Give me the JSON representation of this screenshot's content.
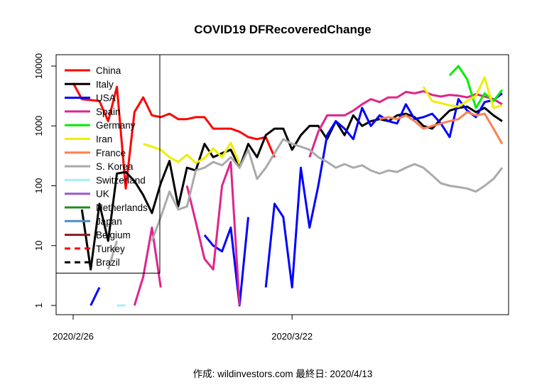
{
  "chart_data": {
    "type": "line",
    "title": "COVID19 DFRecoveredChange",
    "caption": "作成: wildinvestors.com 最終日: 2020/4/13",
    "y_scale": "log",
    "ylim": [
      1,
      10000
    ],
    "y_ticks": [
      1,
      10,
      100,
      1000,
      10000
    ],
    "y_tick_labels": [
      "1",
      "10",
      "100",
      "1000",
      "10000"
    ],
    "x_range": [
      0,
      49
    ],
    "x_ticks": [
      {
        "day": 0,
        "label": "2020/2/26"
      },
      {
        "day": 25,
        "label": "2020/3/22"
      }
    ],
    "legend_position": "top-left",
    "series": [
      {
        "name": "China",
        "color": "#ff0000",
        "width": 3,
        "dash": "",
        "values": [
          5200,
          2800,
          2700,
          2600,
          1200,
          4500,
          90,
          1700,
          3000,
          1500,
          1400,
          1600,
          1300,
          1300,
          1400,
          1400,
          900,
          900,
          900,
          800,
          650,
          600,
          650,
          300,
          null,
          null,
          null,
          null,
          null,
          null,
          null,
          null,
          null,
          null,
          null,
          null,
          null,
          null,
          null,
          null,
          null,
          null,
          null,
          null,
          null,
          null,
          null,
          null,
          null,
          null
        ]
      },
      {
        "name": "Italy",
        "color": "#000000",
        "width": 3,
        "dash": "",
        "values": [
          null,
          40,
          4,
          50,
          12,
          160,
          170,
          120,
          70,
          35,
          110,
          260,
          45,
          200,
          180,
          500,
          300,
          350,
          400,
          200,
          500,
          300,
          700,
          900,
          900,
          400,
          700,
          1000,
          1000,
          600,
          1200,
          700,
          1500,
          1000,
          1200,
          1300,
          1200,
          1500,
          1600,
          1400,
          1000,
          900,
          1300,
          1800,
          2000,
          2100,
          1700,
          2000,
          1500,
          1200
        ]
      },
      {
        "name": "USA",
        "color": "#0000ff",
        "width": 3,
        "dash": "",
        "values": [
          null,
          null,
          1,
          2,
          null,
          null,
          null,
          null,
          null,
          null,
          null,
          null,
          null,
          null,
          null,
          15,
          10,
          8,
          20,
          1,
          30,
          null,
          2,
          50,
          30,
          2,
          200,
          20,
          100,
          700,
          1200,
          900,
          600,
          2000,
          1000,
          1500,
          1200,
          1100,
          2300,
          1300,
          1400,
          1600,
          1100,
          650,
          2800,
          1800,
          1400,
          2500,
          2700,
          3500
        ]
      },
      {
        "name": "Spain",
        "color": "#e0248a",
        "width": 3,
        "dash": "",
        "values": [
          null,
          null,
          null,
          null,
          null,
          null,
          null,
          1,
          3,
          20,
          2,
          null,
          null,
          100,
          25,
          6,
          4,
          100,
          250,
          1,
          null,
          null,
          null,
          null,
          null,
          null,
          null,
          300,
          800,
          1500,
          1500,
          1500,
          1800,
          2300,
          2800,
          2500,
          3000,
          3000,
          3700,
          3500,
          3800,
          3300,
          3100,
          3300,
          3200,
          3000,
          3400,
          3100,
          2800,
          2300
        ]
      },
      {
        "name": "Germany",
        "color": "#00ee00",
        "width": 3,
        "dash": "",
        "values": [
          null,
          null,
          null,
          null,
          null,
          null,
          null,
          null,
          null,
          null,
          null,
          null,
          null,
          null,
          null,
          null,
          null,
          null,
          null,
          null,
          null,
          null,
          null,
          null,
          null,
          null,
          null,
          null,
          null,
          null,
          null,
          null,
          null,
          null,
          null,
          null,
          null,
          null,
          null,
          null,
          null,
          null,
          null,
          7000,
          10000,
          6000,
          2000,
          3500,
          2600,
          4000
        ]
      },
      {
        "name": "Iran",
        "color": "#eeee00",
        "width": 3,
        "dash": "",
        "values": [
          null,
          null,
          null,
          null,
          null,
          null,
          null,
          null,
          500,
          450,
          400,
          300,
          250,
          330,
          240,
          290,
          420,
          300,
          520,
          230,
          null,
          null,
          null,
          null,
          null,
          null,
          null,
          null,
          null,
          null,
          null,
          null,
          null,
          null,
          null,
          null,
          null,
          null,
          null,
          null,
          4500,
          2600,
          2400,
          2200,
          2100,
          2600,
          3200,
          6500,
          2000,
          2200
        ]
      },
      {
        "name": "France",
        "color": "#ff7f50",
        "width": 3,
        "dash": "",
        "values": [
          null,
          null,
          null,
          null,
          null,
          null,
          null,
          null,
          null,
          null,
          null,
          null,
          null,
          null,
          null,
          null,
          null,
          null,
          null,
          null,
          null,
          null,
          null,
          null,
          null,
          null,
          null,
          null,
          null,
          null,
          null,
          null,
          null,
          null,
          null,
          1300,
          1400,
          1300,
          1500,
          1200,
          900,
          1000,
          1100,
          1200,
          1300,
          1700,
          1500,
          1600,
          900,
          500
        ]
      },
      {
        "name": "S. Korea",
        "color": "#aaaaaa",
        "width": 3,
        "dash": "",
        "values": [
          null,
          null,
          null,
          null,
          4,
          12,
          null,
          null,
          null,
          12,
          30,
          80,
          40,
          45,
          180,
          200,
          250,
          220,
          300,
          200,
          400,
          130,
          200,
          350,
          600,
          500,
          450,
          400,
          300,
          250,
          200,
          230,
          200,
          220,
          180,
          160,
          180,
          170,
          200,
          230,
          200,
          150,
          110,
          100,
          95,
          90,
          80,
          100,
          130,
          200
        ]
      },
      {
        "name": "Switzerland",
        "color": "#a6f0f6",
        "width": 3,
        "dash": "",
        "values": [
          null,
          null,
          null,
          null,
          null,
          1,
          1,
          null,
          null,
          null,
          null,
          null,
          null,
          null,
          null,
          null,
          null,
          null,
          null,
          null,
          null,
          null,
          null,
          null,
          null,
          null,
          null,
          null,
          null,
          null,
          null,
          null,
          null,
          null,
          null,
          null,
          null,
          null,
          null,
          null,
          null,
          null,
          null,
          null,
          null,
          null,
          null,
          null,
          null,
          null
        ]
      },
      {
        "name": "UK",
        "color": "#9b59d0",
        "width": 3,
        "dash": "",
        "values": [
          null,
          null,
          null,
          null,
          null,
          null,
          null,
          null,
          null,
          null,
          null,
          null,
          null,
          null,
          null,
          null,
          null,
          null,
          null,
          null,
          null,
          null,
          null,
          null,
          null,
          null,
          null,
          null,
          null,
          null,
          null,
          null,
          null,
          null,
          null,
          null,
          null,
          null,
          null,
          null,
          null,
          null,
          null,
          null,
          null,
          null,
          null,
          null,
          null,
          null
        ]
      },
      {
        "name": "Netherlands",
        "color": "#228b22",
        "width": 3,
        "dash": "",
        "values": [
          null,
          null,
          null,
          null,
          null,
          null,
          null,
          null,
          null,
          null,
          null,
          null,
          null,
          null,
          null,
          null,
          null,
          null,
          null,
          null,
          null,
          null,
          null,
          null,
          null,
          null,
          null,
          null,
          null,
          null,
          null,
          null,
          null,
          null,
          null,
          null,
          null,
          null,
          null,
          null,
          null,
          null,
          null,
          null,
          null,
          null,
          null,
          null,
          null,
          null
        ]
      },
      {
        "name": "Japan",
        "color": "#4a8ec2",
        "width": 3,
        "dash": "",
        "values": [
          null,
          null,
          null,
          null,
          null,
          null,
          null,
          null,
          null,
          null,
          null,
          null,
          null,
          null,
          null,
          null,
          null,
          null,
          null,
          null,
          null,
          null,
          null,
          null,
          null,
          null,
          null,
          null,
          null,
          null,
          null,
          null,
          null,
          null,
          null,
          null,
          null,
          null,
          null,
          null,
          null,
          null,
          null,
          null,
          null,
          null,
          null,
          null,
          null,
          null
        ]
      },
      {
        "name": "Belgium",
        "color": "#8b1a1a",
        "width": 3,
        "dash": "",
        "values": [
          null,
          null,
          null,
          null,
          null,
          null,
          null,
          null,
          null,
          null,
          null,
          null,
          null,
          null,
          null,
          null,
          null,
          null,
          null,
          null,
          null,
          null,
          null,
          null,
          null,
          null,
          null,
          null,
          null,
          null,
          null,
          null,
          null,
          null,
          null,
          null,
          null,
          null,
          null,
          null,
          null,
          null,
          null,
          null,
          null,
          null,
          null,
          null,
          null,
          null
        ]
      },
      {
        "name": "Turkey",
        "color": "#ff0000",
        "width": 3,
        "dash": "8,6",
        "values": [
          null,
          null,
          null,
          null,
          null,
          null,
          null,
          null,
          null,
          null,
          null,
          null,
          null,
          null,
          null,
          null,
          null,
          null,
          null,
          null,
          null,
          null,
          null,
          null,
          null,
          null,
          null,
          null,
          null,
          null,
          null,
          null,
          null,
          null,
          null,
          null,
          null,
          null,
          null,
          null,
          null,
          null,
          null,
          null,
          null,
          null,
          null,
          null,
          null,
          null
        ]
      },
      {
        "name": "Brazil",
        "color": "#000000",
        "width": 3,
        "dash": "8,6",
        "values": [
          null,
          null,
          null,
          null,
          null,
          null,
          null,
          null,
          null,
          null,
          null,
          null,
          null,
          null,
          null,
          null,
          null,
          null,
          null,
          null,
          null,
          null,
          null,
          null,
          null,
          null,
          null,
          null,
          null,
          null,
          null,
          null,
          null,
          null,
          null,
          null,
          null,
          null,
          null,
          null,
          null,
          null,
          null,
          null,
          null,
          null,
          null,
          null,
          null,
          null
        ]
      }
    ]
  }
}
